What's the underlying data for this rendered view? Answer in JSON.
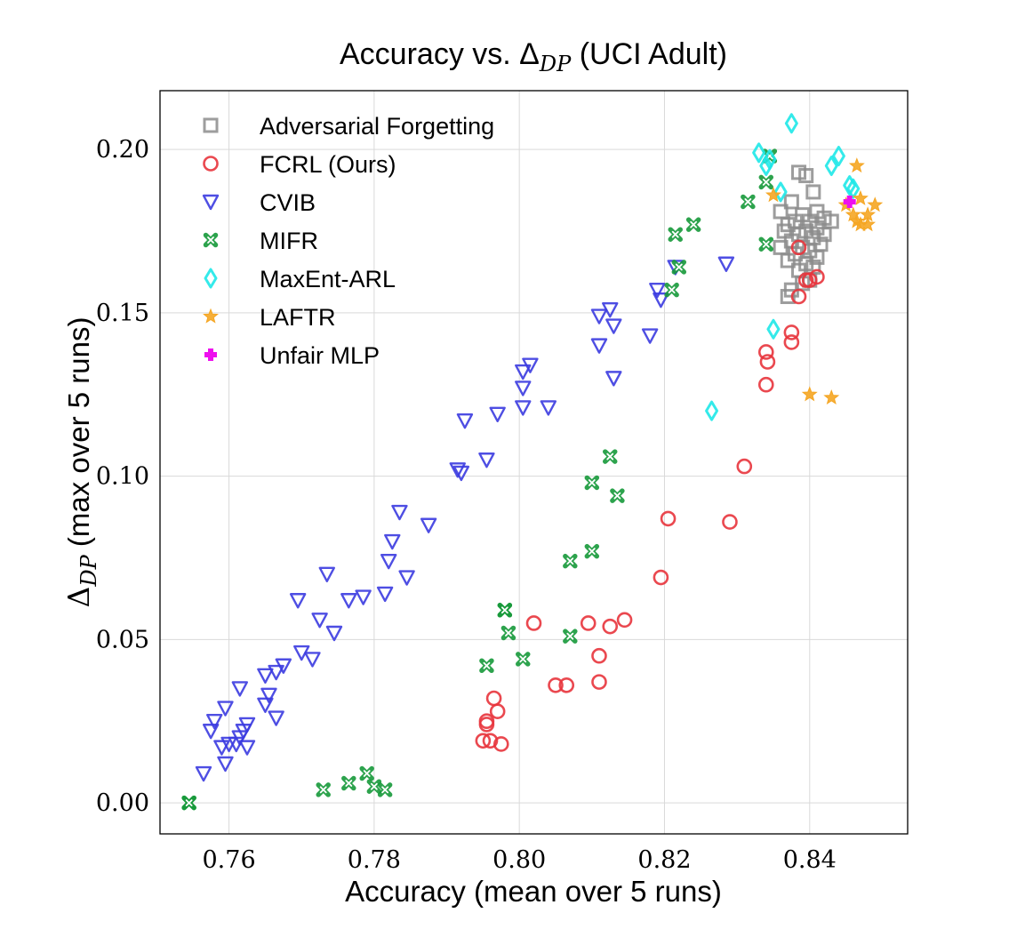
{
  "chart_data": {
    "type": "scatter",
    "title": "Accuracy vs. Δ",
    "title_sub": "DP",
    "title_suffix": " (UCI Adult)",
    "xlabel": "Accuracy (mean over 5 runs)",
    "ylabel_prefix": "Δ",
    "ylabel_sub": "DP",
    "ylabel_suffix": " (max over 5 runs)",
    "xlim": [
      0.7505,
      0.8535
    ],
    "ylim": [
      -0.0095,
      0.218
    ],
    "xticks": [
      0.76,
      0.78,
      0.8,
      0.82,
      0.84
    ],
    "xtick_labels": [
      "0.76",
      "0.78",
      "0.80",
      "0.82",
      "0.84"
    ],
    "yticks": [
      0.0,
      0.05,
      0.1,
      0.15,
      0.2
    ],
    "ytick_labels": [
      "0.00",
      "0.05",
      "0.10",
      "0.15",
      "0.20"
    ],
    "grid": true,
    "legend_position": "top-left",
    "series": [
      {
        "name": "Adversarial Forgetting",
        "marker": "square",
        "color": "#8c8c8c",
        "points": [
          [
            0.8385,
            0.193
          ],
          [
            0.8395,
            0.192
          ],
          [
            0.8405,
            0.187
          ],
          [
            0.8375,
            0.184
          ],
          [
            0.841,
            0.181
          ],
          [
            0.836,
            0.181
          ],
          [
            0.842,
            0.179
          ],
          [
            0.839,
            0.18
          ],
          [
            0.84,
            0.178
          ],
          [
            0.838,
            0.178
          ],
          [
            0.843,
            0.178
          ],
          [
            0.837,
            0.177
          ],
          [
            0.841,
            0.176
          ],
          [
            0.8365,
            0.175
          ],
          [
            0.8395,
            0.175
          ],
          [
            0.8385,
            0.174
          ],
          [
            0.8405,
            0.173
          ],
          [
            0.8375,
            0.172
          ],
          [
            0.8415,
            0.171
          ],
          [
            0.839,
            0.17
          ],
          [
            0.84,
            0.169
          ],
          [
            0.838,
            0.168
          ],
          [
            0.841,
            0.167
          ],
          [
            0.837,
            0.166
          ],
          [
            0.8395,
            0.165
          ],
          [
            0.8405,
            0.164
          ],
          [
            0.8385,
            0.163
          ],
          [
            0.84,
            0.16
          ],
          [
            0.839,
            0.159
          ],
          [
            0.8375,
            0.157
          ],
          [
            0.837,
            0.155
          ],
          [
            0.842,
            0.174
          ],
          [
            0.836,
            0.17
          ]
        ]
      },
      {
        "name": "FCRL (Ours)",
        "marker": "circle",
        "color": "#e8343c",
        "points": [
          [
            0.8385,
            0.17
          ],
          [
            0.84,
            0.16
          ],
          [
            0.8395,
            0.16
          ],
          [
            0.841,
            0.161
          ],
          [
            0.8385,
            0.155
          ],
          [
            0.8375,
            0.144
          ],
          [
            0.8375,
            0.141
          ],
          [
            0.834,
            0.138
          ],
          [
            0.8342,
            0.135
          ],
          [
            0.834,
            0.128
          ],
          [
            0.831,
            0.103
          ],
          [
            0.8205,
            0.087
          ],
          [
            0.829,
            0.086
          ],
          [
            0.8195,
            0.069
          ],
          [
            0.802,
            0.055
          ],
          [
            0.8095,
            0.055
          ],
          [
            0.8145,
            0.056
          ],
          [
            0.8125,
            0.054
          ],
          [
            0.811,
            0.045
          ],
          [
            0.805,
            0.036
          ],
          [
            0.8065,
            0.036
          ],
          [
            0.811,
            0.037
          ],
          [
            0.7965,
            0.032
          ],
          [
            0.797,
            0.028
          ],
          [
            0.7955,
            0.025
          ],
          [
            0.7955,
            0.024
          ],
          [
            0.795,
            0.019
          ],
          [
            0.796,
            0.019
          ],
          [
            0.7975,
            0.018
          ]
        ]
      },
      {
        "name": "CVIB",
        "marker": "triangle-down",
        "color": "#3b3be0",
        "points": [
          [
            0.8285,
            0.165
          ],
          [
            0.8215,
            0.164
          ],
          [
            0.819,
            0.157
          ],
          [
            0.8195,
            0.154
          ],
          [
            0.8125,
            0.151
          ],
          [
            0.811,
            0.149
          ],
          [
            0.813,
            0.146
          ],
          [
            0.818,
            0.143
          ],
          [
            0.811,
            0.14
          ],
          [
            0.8015,
            0.134
          ],
          [
            0.8005,
            0.132
          ],
          [
            0.813,
            0.13
          ],
          [
            0.8005,
            0.127
          ],
          [
            0.804,
            0.121
          ],
          [
            0.8005,
            0.121
          ],
          [
            0.797,
            0.119
          ],
          [
            0.7925,
            0.117
          ],
          [
            0.7915,
            0.102
          ],
          [
            0.792,
            0.101
          ],
          [
            0.7955,
            0.105
          ],
          [
            0.7835,
            0.089
          ],
          [
            0.7875,
            0.085
          ],
          [
            0.7825,
            0.08
          ],
          [
            0.782,
            0.074
          ],
          [
            0.7845,
            0.069
          ],
          [
            0.7735,
            0.07
          ],
          [
            0.7815,
            0.064
          ],
          [
            0.7695,
            0.062
          ],
          [
            0.7765,
            0.062
          ],
          [
            0.7785,
            0.063
          ],
          [
            0.7725,
            0.056
          ],
          [
            0.7745,
            0.052
          ],
          [
            0.77,
            0.046
          ],
          [
            0.7715,
            0.044
          ],
          [
            0.7675,
            0.042
          ],
          [
            0.7665,
            0.04
          ],
          [
            0.765,
            0.039
          ],
          [
            0.7655,
            0.033
          ],
          [
            0.765,
            0.03
          ],
          [
            0.7665,
            0.026
          ],
          [
            0.7615,
            0.035
          ],
          [
            0.7595,
            0.029
          ],
          [
            0.758,
            0.025
          ],
          [
            0.7575,
            0.022
          ],
          [
            0.7625,
            0.024
          ],
          [
            0.762,
            0.022
          ],
          [
            0.7615,
            0.02
          ],
          [
            0.761,
            0.018
          ],
          [
            0.76,
            0.018
          ],
          [
            0.759,
            0.017
          ],
          [
            0.7625,
            0.017
          ],
          [
            0.7595,
            0.012
          ],
          [
            0.7565,
            0.009
          ]
        ]
      },
      {
        "name": "MIFR",
        "marker": "x-cross",
        "color": "#16993a",
        "points": [
          [
            0.8345,
            0.198
          ],
          [
            0.834,
            0.19
          ],
          [
            0.8315,
            0.184
          ],
          [
            0.824,
            0.177
          ],
          [
            0.8215,
            0.174
          ],
          [
            0.834,
            0.171
          ],
          [
            0.822,
            0.164
          ],
          [
            0.821,
            0.157
          ],
          [
            0.8125,
            0.106
          ],
          [
            0.81,
            0.098
          ],
          [
            0.8135,
            0.094
          ],
          [
            0.81,
            0.077
          ],
          [
            0.807,
            0.074
          ],
          [
            0.798,
            0.059
          ],
          [
            0.798,
            0.059
          ],
          [
            0.7985,
            0.052
          ],
          [
            0.807,
            0.051
          ],
          [
            0.7955,
            0.042
          ],
          [
            0.8005,
            0.044
          ],
          [
            0.779,
            0.009
          ],
          [
            0.7765,
            0.006
          ],
          [
            0.78,
            0.005
          ],
          [
            0.7815,
            0.004
          ],
          [
            0.773,
            0.004
          ],
          [
            0.7545,
            0.0
          ],
          [
            0.7545,
            0.0
          ]
        ]
      },
      {
        "name": "MaxEnt-ARL",
        "marker": "diamond",
        "color": "#1ee8e8",
        "points": [
          [
            0.8375,
            0.208
          ],
          [
            0.833,
            0.199
          ],
          [
            0.834,
            0.195
          ],
          [
            0.8345,
            0.197
          ],
          [
            0.844,
            0.198
          ],
          [
            0.843,
            0.195
          ],
          [
            0.8455,
            0.189
          ],
          [
            0.836,
            0.187
          ],
          [
            0.835,
            0.145
          ],
          [
            0.8265,
            0.12
          ],
          [
            0.846,
            0.188
          ]
        ]
      },
      {
        "name": "LAFTR",
        "marker": "star",
        "color": "#f5a623",
        "points": [
          [
            0.8465,
            0.195
          ],
          [
            0.835,
            0.186
          ],
          [
            0.847,
            0.185
          ],
          [
            0.845,
            0.183
          ],
          [
            0.849,
            0.183
          ],
          [
            0.848,
            0.18
          ],
          [
            0.846,
            0.18
          ],
          [
            0.847,
            0.177
          ],
          [
            0.848,
            0.177
          ],
          [
            0.8465,
            0.178
          ],
          [
            0.84,
            0.125
          ],
          [
            0.843,
            0.124
          ]
        ]
      },
      {
        "name": "Unfair MLP",
        "marker": "plus",
        "color": "#ee10ee",
        "points": [
          [
            0.8455,
            0.184
          ]
        ]
      }
    ]
  }
}
